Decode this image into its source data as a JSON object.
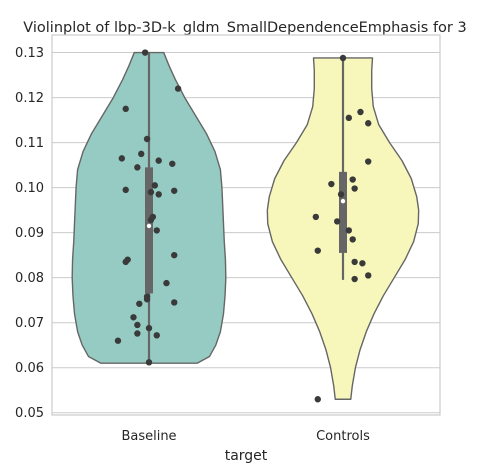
{
  "chart_data": {
    "type": "violin",
    "title": "Violinplot of lbp-3D-k_gldm_SmallDependenceEmphasis for 3",
    "xlabel": "target",
    "ylabel": "",
    "ylim": [
      0.0495,
      0.1339
    ],
    "yticks": [
      0.05,
      0.06,
      0.07,
      0.08,
      0.09,
      0.1,
      0.11,
      0.12,
      0.13
    ],
    "ytick_labels": [
      "0.05",
      "0.06",
      "0.07",
      "0.08",
      "0.09",
      "0.10",
      "0.11",
      "0.12",
      "0.13"
    ],
    "grid": true,
    "categories": [
      "Baseline",
      "Controls"
    ],
    "series": [
      {
        "category": "Baseline",
        "color": "#95cbc2",
        "violin": {
          "y_min": 0.061,
          "y_max": 0.13,
          "profile": [
            [
              0.061,
              0.62
            ],
            [
              0.0625,
              0.78
            ],
            [
              0.065,
              0.86
            ],
            [
              0.068,
              0.92
            ],
            [
              0.072,
              0.96
            ],
            [
              0.076,
              0.98
            ],
            [
              0.08,
              0.99
            ],
            [
              0.084,
              0.985
            ],
            [
              0.088,
              0.97
            ],
            [
              0.092,
              0.96
            ],
            [
              0.096,
              0.95
            ],
            [
              0.1,
              0.94
            ],
            [
              0.104,
              0.92
            ],
            [
              0.108,
              0.85
            ],
            [
              0.112,
              0.74
            ],
            [
              0.116,
              0.6
            ],
            [
              0.12,
              0.46
            ],
            [
              0.124,
              0.34
            ],
            [
              0.127,
              0.26
            ],
            [
              0.13,
              0.19
            ]
          ]
        },
        "box": {
          "q1": 0.0765,
          "median": 0.0915,
          "q3": 0.1045,
          "whisker_low": 0.061,
          "whisker_high": 0.13
        },
        "points": [
          [
            -0.02,
            0.13
          ],
          [
            0.15,
            0.122
          ],
          [
            -0.12,
            0.1175
          ],
          [
            -0.01,
            0.1108
          ],
          [
            -0.04,
            0.1075
          ],
          [
            -0.14,
            0.1065
          ],
          [
            0.05,
            0.106
          ],
          [
            0.12,
            0.1053
          ],
          [
            -0.06,
            0.1045
          ],
          [
            0.03,
            0.1005
          ],
          [
            -0.12,
            0.0995
          ],
          [
            0.13,
            0.0993
          ],
          [
            0.01,
            0.099
          ],
          [
            0.05,
            0.0985
          ],
          [
            0.02,
            0.0935
          ],
          [
            0.01,
            0.0928
          ],
          [
            0.04,
            0.0905
          ],
          [
            -0.11,
            0.084
          ],
          [
            -0.12,
            0.0835
          ],
          [
            0.13,
            0.085
          ],
          [
            0.09,
            0.0788
          ],
          [
            -0.01,
            0.0758
          ],
          [
            0.13,
            0.0745
          ],
          [
            -0.01,
            0.0752
          ],
          [
            -0.05,
            0.0742
          ],
          [
            -0.08,
            0.0712
          ],
          [
            -0.06,
            0.0695
          ],
          [
            0.0,
            0.0688
          ],
          [
            0.04,
            0.0672
          ],
          [
            -0.06,
            0.0676
          ],
          [
            -0.16,
            0.066
          ],
          [
            0.0,
            0.0612
          ]
        ]
      },
      {
        "category": "Controls",
        "color": "#f7f7bb",
        "violin": {
          "y_min": 0.053,
          "y_max": 0.1288,
          "profile": [
            [
              0.053,
              0.1
            ],
            [
              0.056,
              0.12
            ],
            [
              0.06,
              0.16
            ],
            [
              0.064,
              0.22
            ],
            [
              0.068,
              0.3
            ],
            [
              0.072,
              0.4
            ],
            [
              0.076,
              0.52
            ],
            [
              0.08,
              0.66
            ],
            [
              0.084,
              0.8
            ],
            [
              0.088,
              0.91
            ],
            [
              0.092,
              0.97
            ],
            [
              0.095,
              0.975
            ],
            [
              0.098,
              0.95
            ],
            [
              0.102,
              0.88
            ],
            [
              0.106,
              0.76
            ],
            [
              0.11,
              0.6
            ],
            [
              0.114,
              0.46
            ],
            [
              0.118,
              0.39
            ],
            [
              0.122,
              0.37
            ],
            [
              0.126,
              0.37
            ],
            [
              0.1288,
              0.38
            ]
          ]
        },
        "box": {
          "q1": 0.0855,
          "median": 0.097,
          "q3": 0.1035,
          "whisker_low": 0.0795,
          "whisker_high": 0.1288
        },
        "points": [
          [
            0.0,
            0.1288
          ],
          [
            0.09,
            0.1168
          ],
          [
            0.03,
            0.1155
          ],
          [
            0.13,
            0.1143
          ],
          [
            0.13,
            0.1058
          ],
          [
            0.05,
            0.1018
          ],
          [
            -0.06,
            0.1008
          ],
          [
            0.06,
            0.0998
          ],
          [
            -0.01,
            0.0985
          ],
          [
            -0.14,
            0.0935
          ],
          [
            -0.03,
            0.0925
          ],
          [
            0.03,
            0.0905
          ],
          [
            0.05,
            0.0885
          ],
          [
            -0.13,
            0.086
          ],
          [
            0.06,
            0.0835
          ],
          [
            0.1,
            0.0832
          ],
          [
            0.13,
            0.0805
          ],
          [
            0.06,
            0.0797
          ],
          [
            -0.13,
            0.053
          ]
        ]
      }
    ]
  }
}
